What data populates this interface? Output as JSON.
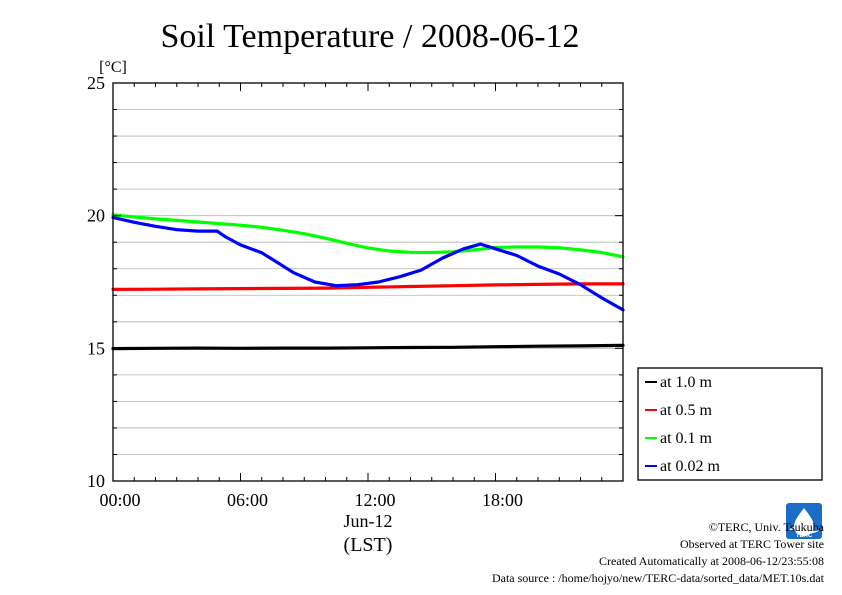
{
  "chart_data": {
    "type": "line",
    "title": "Soil Temperature / 2008-06-12",
    "ylabel": "[°C]",
    "ylim": [
      10,
      25
    ],
    "y_ticks": [
      10,
      15,
      20,
      25
    ],
    "y_tick_labels": [
      "10",
      "15",
      "20",
      "25"
    ],
    "x_unit": "hour",
    "xlim": [
      0,
      24
    ],
    "x_ticks": [
      0,
      6,
      12,
      18
    ],
    "x_tick_labels": [
      "00:00",
      "06:00",
      "12:00",
      "18:00"
    ],
    "x_date_label": "Jun-12",
    "x_timezone_label": "(LST)",
    "grid": "horizontal",
    "legend_position": "right",
    "series": [
      {
        "name": "at 1.0 m",
        "color": "#000000",
        "x": [
          0,
          2,
          4,
          6,
          8,
          10,
          12,
          14,
          16,
          18,
          20,
          22,
          24
        ],
        "y": [
          14.99,
          15.0,
          15.01,
          15.0,
          15.01,
          15.01,
          15.02,
          15.03,
          15.04,
          15.06,
          15.08,
          15.09,
          15.11
        ]
      },
      {
        "name": "at 0.5 m",
        "color": "#ff0000",
        "x": [
          0,
          2,
          4,
          6,
          8,
          10,
          12,
          14,
          16,
          18,
          20,
          22,
          24
        ],
        "y": [
          17.22,
          17.23,
          17.24,
          17.25,
          17.26,
          17.27,
          17.3,
          17.33,
          17.36,
          17.39,
          17.41,
          17.43,
          17.43
        ]
      },
      {
        "name": "at 0.1 m",
        "color": "#00ff00",
        "x": [
          0,
          1,
          2,
          3,
          4,
          5,
          6,
          7,
          8,
          9,
          10,
          11,
          12,
          13,
          14,
          15,
          16,
          17,
          18,
          19,
          20,
          21,
          22,
          23,
          24
        ],
        "y": [
          20.03,
          19.95,
          19.88,
          19.82,
          19.76,
          19.7,
          19.64,
          19.56,
          19.45,
          19.32,
          19.15,
          18.96,
          18.78,
          18.67,
          18.62,
          18.61,
          18.64,
          18.71,
          18.8,
          18.82,
          18.82,
          18.79,
          18.71,
          18.61,
          18.45
        ]
      },
      {
        "name": "at 0.02 m",
        "color": "#0000ff",
        "x": [
          0,
          1,
          2,
          3,
          4,
          4.9,
          5.3,
          6,
          7,
          7.8,
          8.5,
          9.5,
          10.5,
          11.5,
          12.5,
          13.5,
          14.5,
          15.5,
          16.5,
          17.3,
          18,
          19,
          20,
          21,
          22,
          23,
          24
        ],
        "y": [
          19.93,
          19.75,
          19.6,
          19.47,
          19.42,
          19.42,
          19.2,
          18.9,
          18.6,
          18.2,
          17.85,
          17.5,
          17.36,
          17.4,
          17.5,
          17.7,
          17.95,
          18.4,
          18.75,
          18.93,
          18.75,
          18.5,
          18.1,
          17.8,
          17.4,
          16.9,
          16.45
        ]
      }
    ]
  },
  "credits": {
    "copyright": "©TERC, Univ. Tsukuba",
    "site": "Observed at TERC Tower site",
    "created": "Created Automatically at 2008-06-12/23:55:08",
    "source": "Data source : /home/hojyo/new/TERC-data/sorted_data/MET.10s.dat",
    "logo_text": "TERC"
  }
}
